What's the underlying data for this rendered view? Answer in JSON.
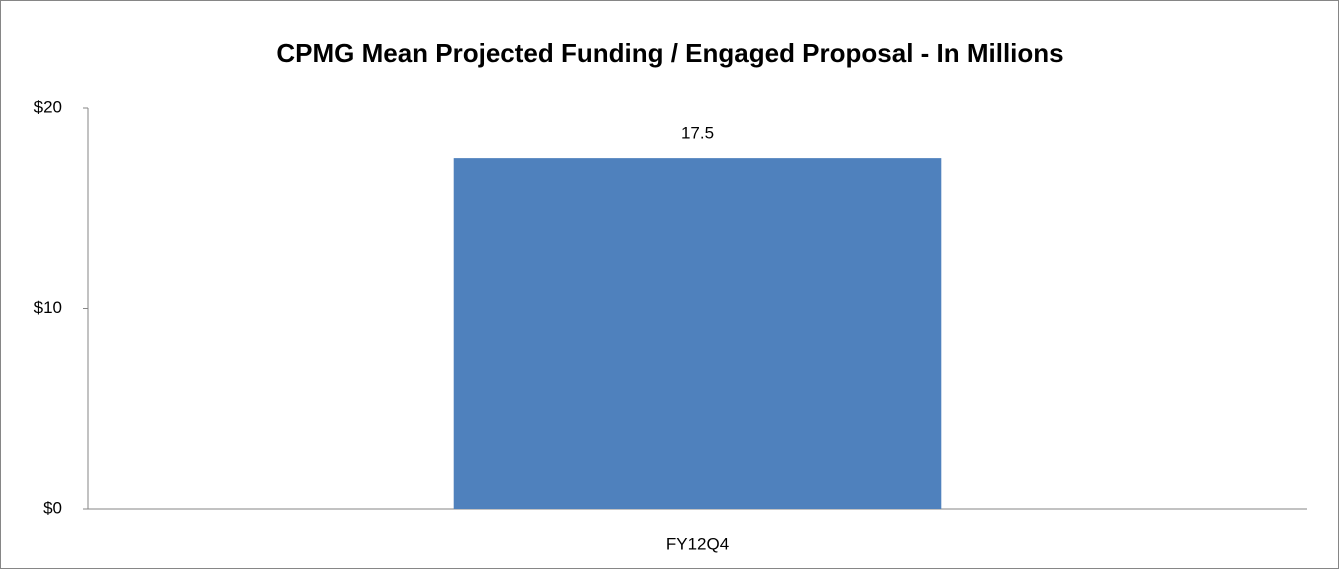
{
  "chart_data": {
    "type": "bar",
    "title": "CPMG Mean Projected Funding / Engaged Proposal - In Millions",
    "categories": [
      "FY12Q4"
    ],
    "values": [
      17.5
    ],
    "color": "#4f81bd",
    "ylim": [
      0,
      20
    ],
    "yticks": [
      {
        "value": 0,
        "label": "$0"
      },
      {
        "value": 10,
        "label": "$10"
      },
      {
        "value": 20,
        "label": "$20"
      }
    ],
    "grid": false
  }
}
